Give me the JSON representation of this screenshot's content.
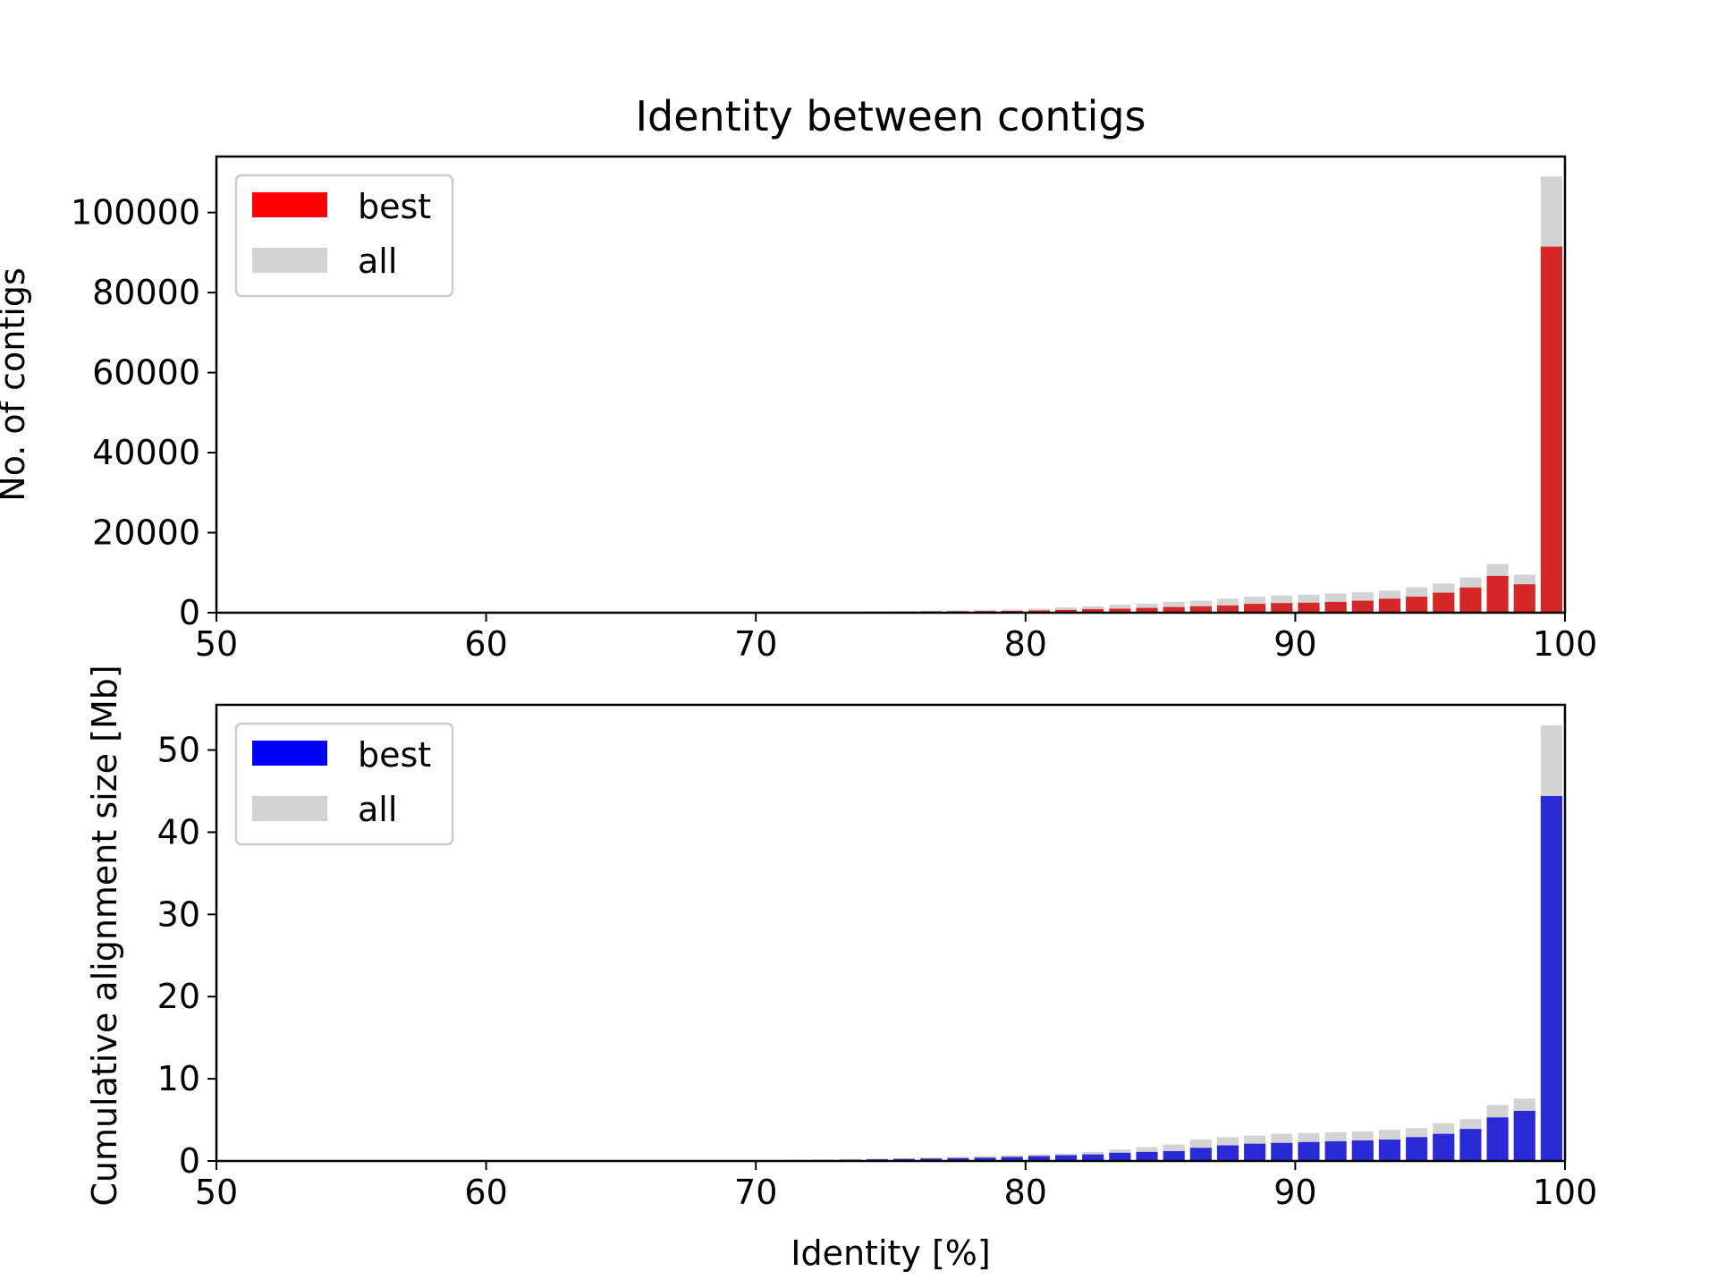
{
  "figure": {
    "title": "Identity between contigs"
  },
  "colors": {
    "best_top": "#d62728",
    "best_bottom": "#2a2ad6",
    "legend_best_top": "#ff0000",
    "legend_best_bottom": "#0000ff",
    "all": "#d3d3d3"
  },
  "chart_data": [
    {
      "type": "bar",
      "stacked": "overlay",
      "title": "Identity between contigs",
      "xlabel": "",
      "ylabel": "No. of contigs",
      "xlim": [
        50,
        100
      ],
      "ylim": [
        0,
        114000
      ],
      "xticks": [
        "50",
        "60",
        "70",
        "80",
        "90",
        "100"
      ],
      "yticks": [
        "0",
        "20000",
        "40000",
        "60000",
        "80000",
        "100000"
      ],
      "legend": {
        "placement": "upper-left",
        "entries": [
          "best",
          "all"
        ]
      },
      "x": [
        70,
        71,
        72,
        73,
        74,
        75,
        76,
        77,
        78,
        79,
        80,
        81,
        82,
        83,
        84,
        85,
        86,
        87,
        88,
        89,
        90,
        91,
        92,
        93,
        94,
        95,
        96,
        97,
        98,
        99
      ],
      "series": [
        {
          "name": "all",
          "values": [
            100,
            120,
            150,
            200,
            300,
            400,
            500,
            600,
            700,
            800,
            1000,
            1300,
            1600,
            2000,
            2300,
            2700,
            3000,
            3500,
            4000,
            4300,
            4500,
            4800,
            5100,
            5500,
            6400,
            7300,
            8800,
            12200,
            9500,
            109000
          ]
        },
        {
          "name": "best",
          "values": [
            50,
            60,
            80,
            100,
            150,
            200,
            300,
            350,
            400,
            450,
            550,
            700,
            900,
            1000,
            1200,
            1400,
            1600,
            1800,
            2200,
            2400,
            2500,
            2700,
            3000,
            3500,
            4000,
            5000,
            6300,
            9200,
            7100,
            91500
          ]
        }
      ]
    },
    {
      "type": "bar",
      "stacked": "overlay",
      "xlabel": "Identity [%]",
      "ylabel": "Cumulative alignment size [Mb]",
      "xlim": [
        50,
        100
      ],
      "ylim": [
        0,
        55.5
      ],
      "xticks": [
        "50",
        "60",
        "70",
        "80",
        "90",
        "100"
      ],
      "yticks": [
        "0",
        "10",
        "20",
        "30",
        "40",
        "50"
      ],
      "legend": {
        "placement": "upper-left",
        "entries": [
          "best",
          "all"
        ]
      },
      "x": [
        67,
        68,
        69,
        70,
        71,
        72,
        73,
        74,
        75,
        76,
        77,
        78,
        79,
        80,
        81,
        82,
        83,
        84,
        85,
        86,
        87,
        88,
        89,
        90,
        91,
        92,
        93,
        94,
        95,
        96,
        97,
        98,
        99
      ],
      "series": [
        {
          "name": "all",
          "values": [
            0.05,
            0.05,
            0.1,
            0.1,
            0.15,
            0.2,
            0.25,
            0.3,
            0.35,
            0.4,
            0.5,
            0.6,
            0.7,
            0.8,
            0.9,
            1.1,
            1.4,
            1.7,
            2.0,
            2.6,
            2.9,
            3.1,
            3.3,
            3.4,
            3.5,
            3.6,
            3.8,
            4.0,
            4.6,
            5.1,
            6.8,
            7.6,
            53.0
          ]
        },
        {
          "name": "best",
          "values": [
            0.02,
            0.02,
            0.05,
            0.05,
            0.08,
            0.1,
            0.15,
            0.2,
            0.25,
            0.3,
            0.35,
            0.4,
            0.5,
            0.6,
            0.7,
            0.8,
            1.0,
            1.1,
            1.2,
            1.6,
            1.9,
            2.1,
            2.2,
            2.3,
            2.4,
            2.5,
            2.6,
            2.9,
            3.3,
            3.9,
            5.3,
            6.1,
            44.4
          ]
        }
      ]
    }
  ]
}
